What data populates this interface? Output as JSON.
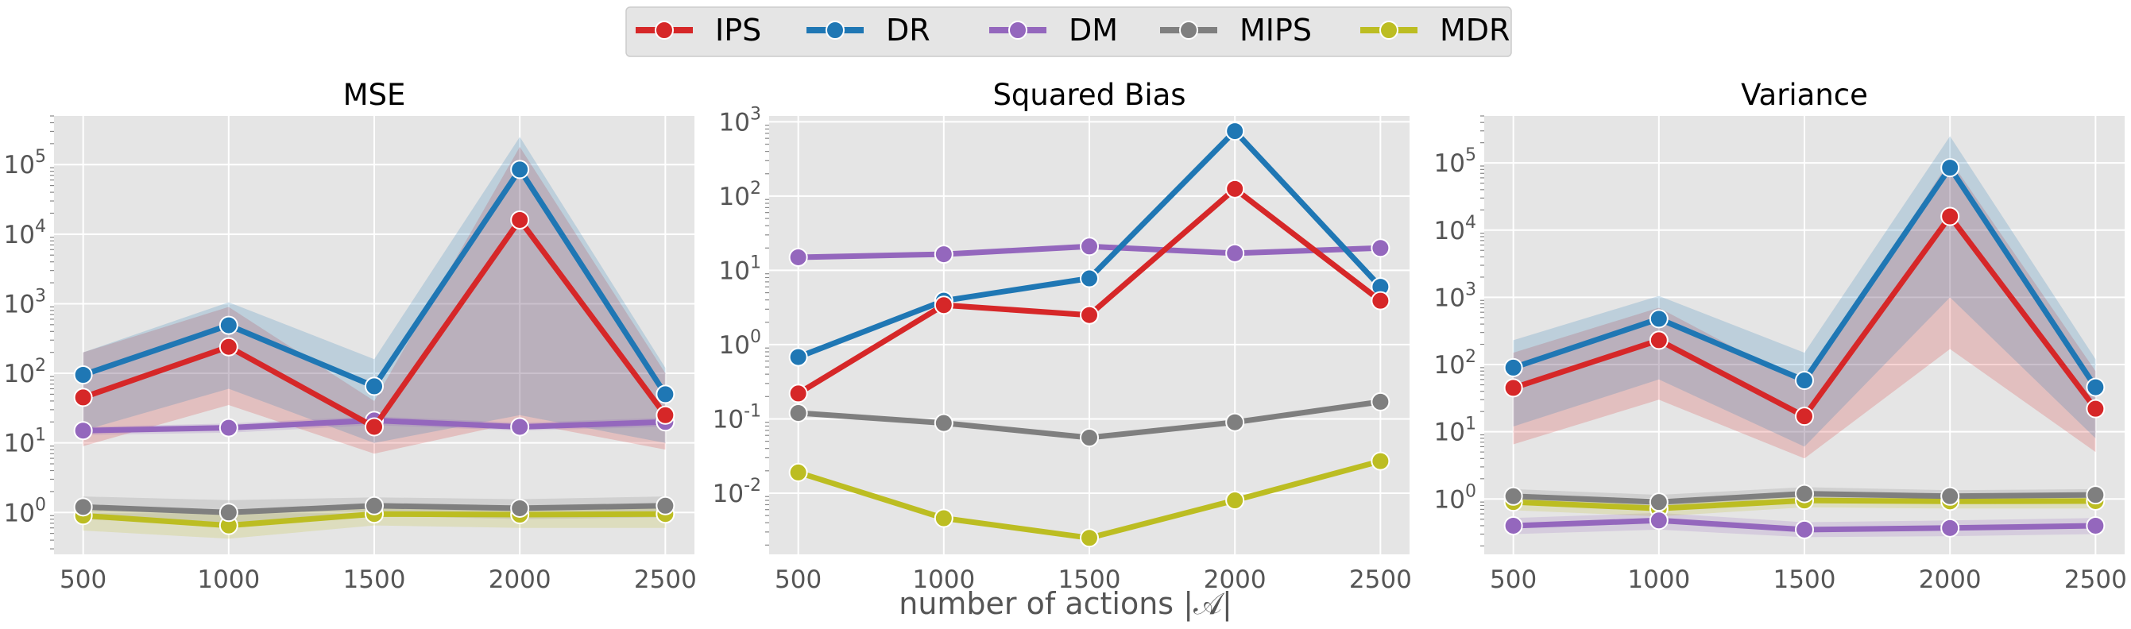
{
  "figure": {
    "xlabel": "number of actions |𝒜|"
  },
  "colors": {
    "panel_bg": "#e5e5e5",
    "grid": "#ffffff",
    "tick_text": "#555555",
    "legend_bg": "#e5e5e5"
  },
  "legend": {
    "placement": "top-center",
    "entries": [
      {
        "name": "IPS",
        "color": "#d62728"
      },
      {
        "name": "DR",
        "color": "#1f77b4"
      },
      {
        "name": "DM",
        "color": "#9467bd"
      },
      {
        "name": "MIPS",
        "color": "#7f7f7f"
      },
      {
        "name": "MDR",
        "color": "#bcbd22"
      }
    ]
  },
  "chart_data": [
    {
      "type": "line",
      "title": "MSE",
      "yscale": "log",
      "ylim": [
        0.25,
        500000
      ],
      "yticks": [
        1,
        10,
        100,
        1000,
        10000,
        100000
      ],
      "yticklabels": [
        "10^0",
        "10^1",
        "10^2",
        "10^3",
        "10^4",
        "10^5"
      ],
      "x": [
        500,
        1000,
        1500,
        2000,
        2500
      ],
      "xlim": [
        400,
        2600
      ],
      "series": [
        {
          "name": "IPS",
          "color": "#d62728",
          "values": [
            45,
            240,
            17,
            16000,
            25
          ],
          "band_low": [
            9,
            35,
            7,
            20,
            8
          ],
          "band_high": [
            200,
            900,
            40,
            180000,
            100
          ]
        },
        {
          "name": "DR",
          "color": "#1f77b4",
          "values": [
            95,
            490,
            65,
            85000,
            50
          ],
          "band_low": [
            15,
            60,
            10,
            25,
            10
          ],
          "band_high": [
            200,
            1050,
            160,
            250000,
            120
          ]
        },
        {
          "name": "DM",
          "color": "#9467bd",
          "values": [
            15,
            16.5,
            21,
            17,
            20
          ],
          "band_low": [
            13,
            14,
            18,
            15,
            17
          ],
          "band_high": [
            17,
            19,
            24,
            19.5,
            23
          ]
        },
        {
          "name": "MIPS",
          "color": "#7f7f7f",
          "values": [
            1.2,
            1.0,
            1.25,
            1.15,
            1.25
          ],
          "band_low": [
            0.8,
            0.65,
            0.9,
            0.8,
            0.85
          ],
          "band_high": [
            1.7,
            1.5,
            1.65,
            1.55,
            1.7
          ]
        },
        {
          "name": "MDR",
          "color": "#bcbd22",
          "values": [
            0.9,
            0.65,
            0.95,
            0.93,
            0.95
          ],
          "band_low": [
            0.55,
            0.42,
            0.65,
            0.6,
            0.6
          ],
          "band_high": [
            1.25,
            1.0,
            1.3,
            1.25,
            1.3
          ]
        }
      ]
    },
    {
      "type": "line",
      "title": "Squared Bias",
      "yscale": "log",
      "ylim": [
        0.0015,
        1200
      ],
      "yticks": [
        0.01,
        0.1,
        1,
        10,
        100,
        1000
      ],
      "yticklabels": [
        "10^-2",
        "10^-1",
        "10^0",
        "10^1",
        "10^2",
        "10^3"
      ],
      "x": [
        500,
        1000,
        1500,
        2000,
        2500
      ],
      "xlim": [
        400,
        2600
      ],
      "series": [
        {
          "name": "IPS",
          "color": "#d62728",
          "values": [
            0.22,
            3.4,
            2.5,
            125,
            3.9
          ]
        },
        {
          "name": "DR",
          "color": "#1f77b4",
          "values": [
            0.68,
            3.9,
            7.8,
            750,
            6.0
          ]
        },
        {
          "name": "DM",
          "color": "#9467bd",
          "values": [
            15,
            16.5,
            21,
            17,
            20
          ]
        },
        {
          "name": "MIPS",
          "color": "#7f7f7f",
          "values": [
            0.12,
            0.088,
            0.056,
            0.09,
            0.17
          ]
        },
        {
          "name": "MDR",
          "color": "#bcbd22",
          "values": [
            0.019,
            0.0046,
            0.0025,
            0.008,
            0.027
          ]
        }
      ]
    },
    {
      "type": "line",
      "title": "Variance",
      "yscale": "log",
      "ylim": [
        0.15,
        500000
      ],
      "yticks": [
        1,
        10,
        100,
        1000,
        10000,
        100000
      ],
      "yticklabels": [
        "10^0",
        "10^1",
        "10^2",
        "10^3",
        "10^4",
        "10^5"
      ],
      "x": [
        500,
        1000,
        1500,
        2000,
        2500
      ],
      "xlim": [
        400,
        2600
      ],
      "series": [
        {
          "name": "IPS",
          "color": "#d62728",
          "values": [
            45,
            230,
            17,
            16000,
            22
          ],
          "band_low": [
            6.5,
            30,
            4,
            170,
            5
          ],
          "band_high": [
            150,
            700,
            50,
            110000,
            80
          ]
        },
        {
          "name": "DR",
          "color": "#1f77b4",
          "values": [
            90,
            480,
            58,
            85000,
            46
          ],
          "band_low": [
            12,
            60,
            6,
            1000,
            8
          ],
          "band_high": [
            230,
            1050,
            150,
            250000,
            120
          ]
        },
        {
          "name": "DM",
          "color": "#9467bd",
          "values": [
            0.4,
            0.48,
            0.35,
            0.37,
            0.4
          ],
          "band_low": [
            0.3,
            0.35,
            0.27,
            0.28,
            0.3
          ],
          "band_high": [
            0.52,
            0.62,
            0.45,
            0.48,
            0.52
          ]
        },
        {
          "name": "MIPS",
          "color": "#7f7f7f",
          "values": [
            1.1,
            0.9,
            1.2,
            1.1,
            1.15
          ],
          "band_low": [
            0.85,
            0.7,
            0.95,
            0.85,
            0.9
          ],
          "band_high": [
            1.4,
            1.15,
            1.5,
            1.35,
            1.4
          ]
        },
        {
          "name": "MDR",
          "color": "#bcbd22",
          "values": [
            0.9,
            0.72,
            0.95,
            0.92,
            0.93
          ],
          "band_low": [
            0.68,
            0.55,
            0.75,
            0.72,
            0.72
          ],
          "band_high": [
            1.12,
            0.9,
            1.15,
            1.1,
            1.12
          ]
        }
      ]
    }
  ]
}
